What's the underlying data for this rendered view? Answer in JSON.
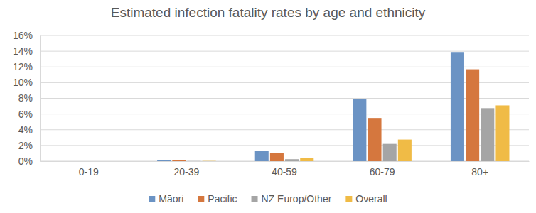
{
  "chart_data": {
    "type": "bar",
    "title": "Estimated infection fatality rates by age and ethnicity",
    "categories": [
      "0-19",
      "20-39",
      "40-59",
      "60-79",
      "80+"
    ],
    "series": [
      {
        "name": "Māori",
        "color": "#6b93c4",
        "values": [
          0,
          0.1,
          1.3,
          7.9,
          13.9
        ]
      },
      {
        "name": "Pacific",
        "color": "#d5773e",
        "values": [
          0,
          0.1,
          1.0,
          5.5,
          11.7
        ]
      },
      {
        "name": "NZ Europ/Other",
        "color": "#a5a5a5",
        "values": [
          0,
          0.02,
          0.25,
          2.2,
          6.75
        ]
      },
      {
        "name": "Overall",
        "color": "#f0bb46",
        "values": [
          0,
          0.03,
          0.45,
          2.75,
          7.1
        ]
      }
    ],
    "ylim": [
      0,
      16
    ],
    "yticks": [
      {
        "value": 0,
        "label": "0%"
      },
      {
        "value": 2,
        "label": "2%"
      },
      {
        "value": 4,
        "label": "4%"
      },
      {
        "value": 6,
        "label": "6%"
      },
      {
        "value": 8,
        "label": "8%"
      },
      {
        "value": 10,
        "label": "10%"
      },
      {
        "value": 12,
        "label": "12%"
      },
      {
        "value": 14,
        "label": "14%"
      },
      {
        "value": 16,
        "label": "16%"
      }
    ],
    "grid": true,
    "legend": "bottom"
  }
}
